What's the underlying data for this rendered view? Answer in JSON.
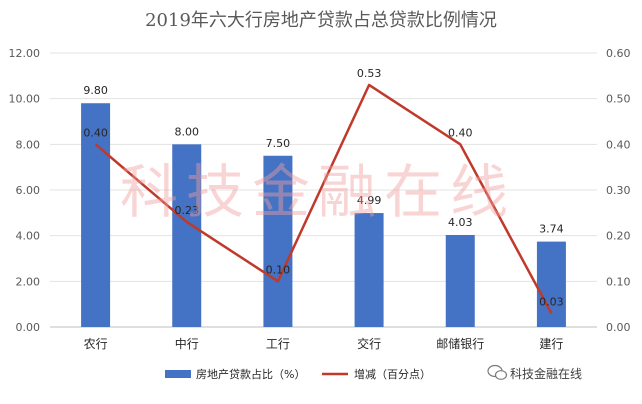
{
  "chart_data": {
    "type": "bar",
    "title": "2019年六大行房地产贷款占总贷款比例情况",
    "categories": [
      "农行",
      "中行",
      "工行",
      "交行",
      "邮储银行",
      "建行"
    ],
    "series": [
      {
        "name": "房地产贷款占比（%）",
        "type": "bar",
        "axis": "left",
        "color": "#4472c4",
        "values": [
          9.8,
          8.0,
          7.5,
          4.99,
          4.03,
          3.74
        ],
        "labels": [
          "9.80",
          "8.00",
          "7.50",
          "4.99",
          "4.03",
          "3.74"
        ]
      },
      {
        "name": "增减（百分点）",
        "type": "line",
        "axis": "right",
        "color": "#c0392b",
        "values": [
          0.4,
          0.23,
          0.1,
          0.53,
          0.4,
          0.03
        ],
        "labels": [
          "0.40",
          "0.23",
          "0.10",
          "0.53",
          "0.40",
          "0.03"
        ]
      }
    ],
    "y_left": {
      "ylim": [
        0,
        12
      ],
      "ticks": [
        "0.00",
        "2.00",
        "4.00",
        "6.00",
        "8.00",
        "10.00",
        "12.00"
      ]
    },
    "y_right": {
      "ylim": [
        0,
        0.6
      ],
      "ticks": [
        "0.00",
        "0.10",
        "0.20",
        "0.30",
        "0.40",
        "0.50",
        "0.60"
      ]
    },
    "grid": true,
    "legend": "bottom"
  },
  "watermark": "科技金融在线",
  "source_badge": "科技金融在线"
}
